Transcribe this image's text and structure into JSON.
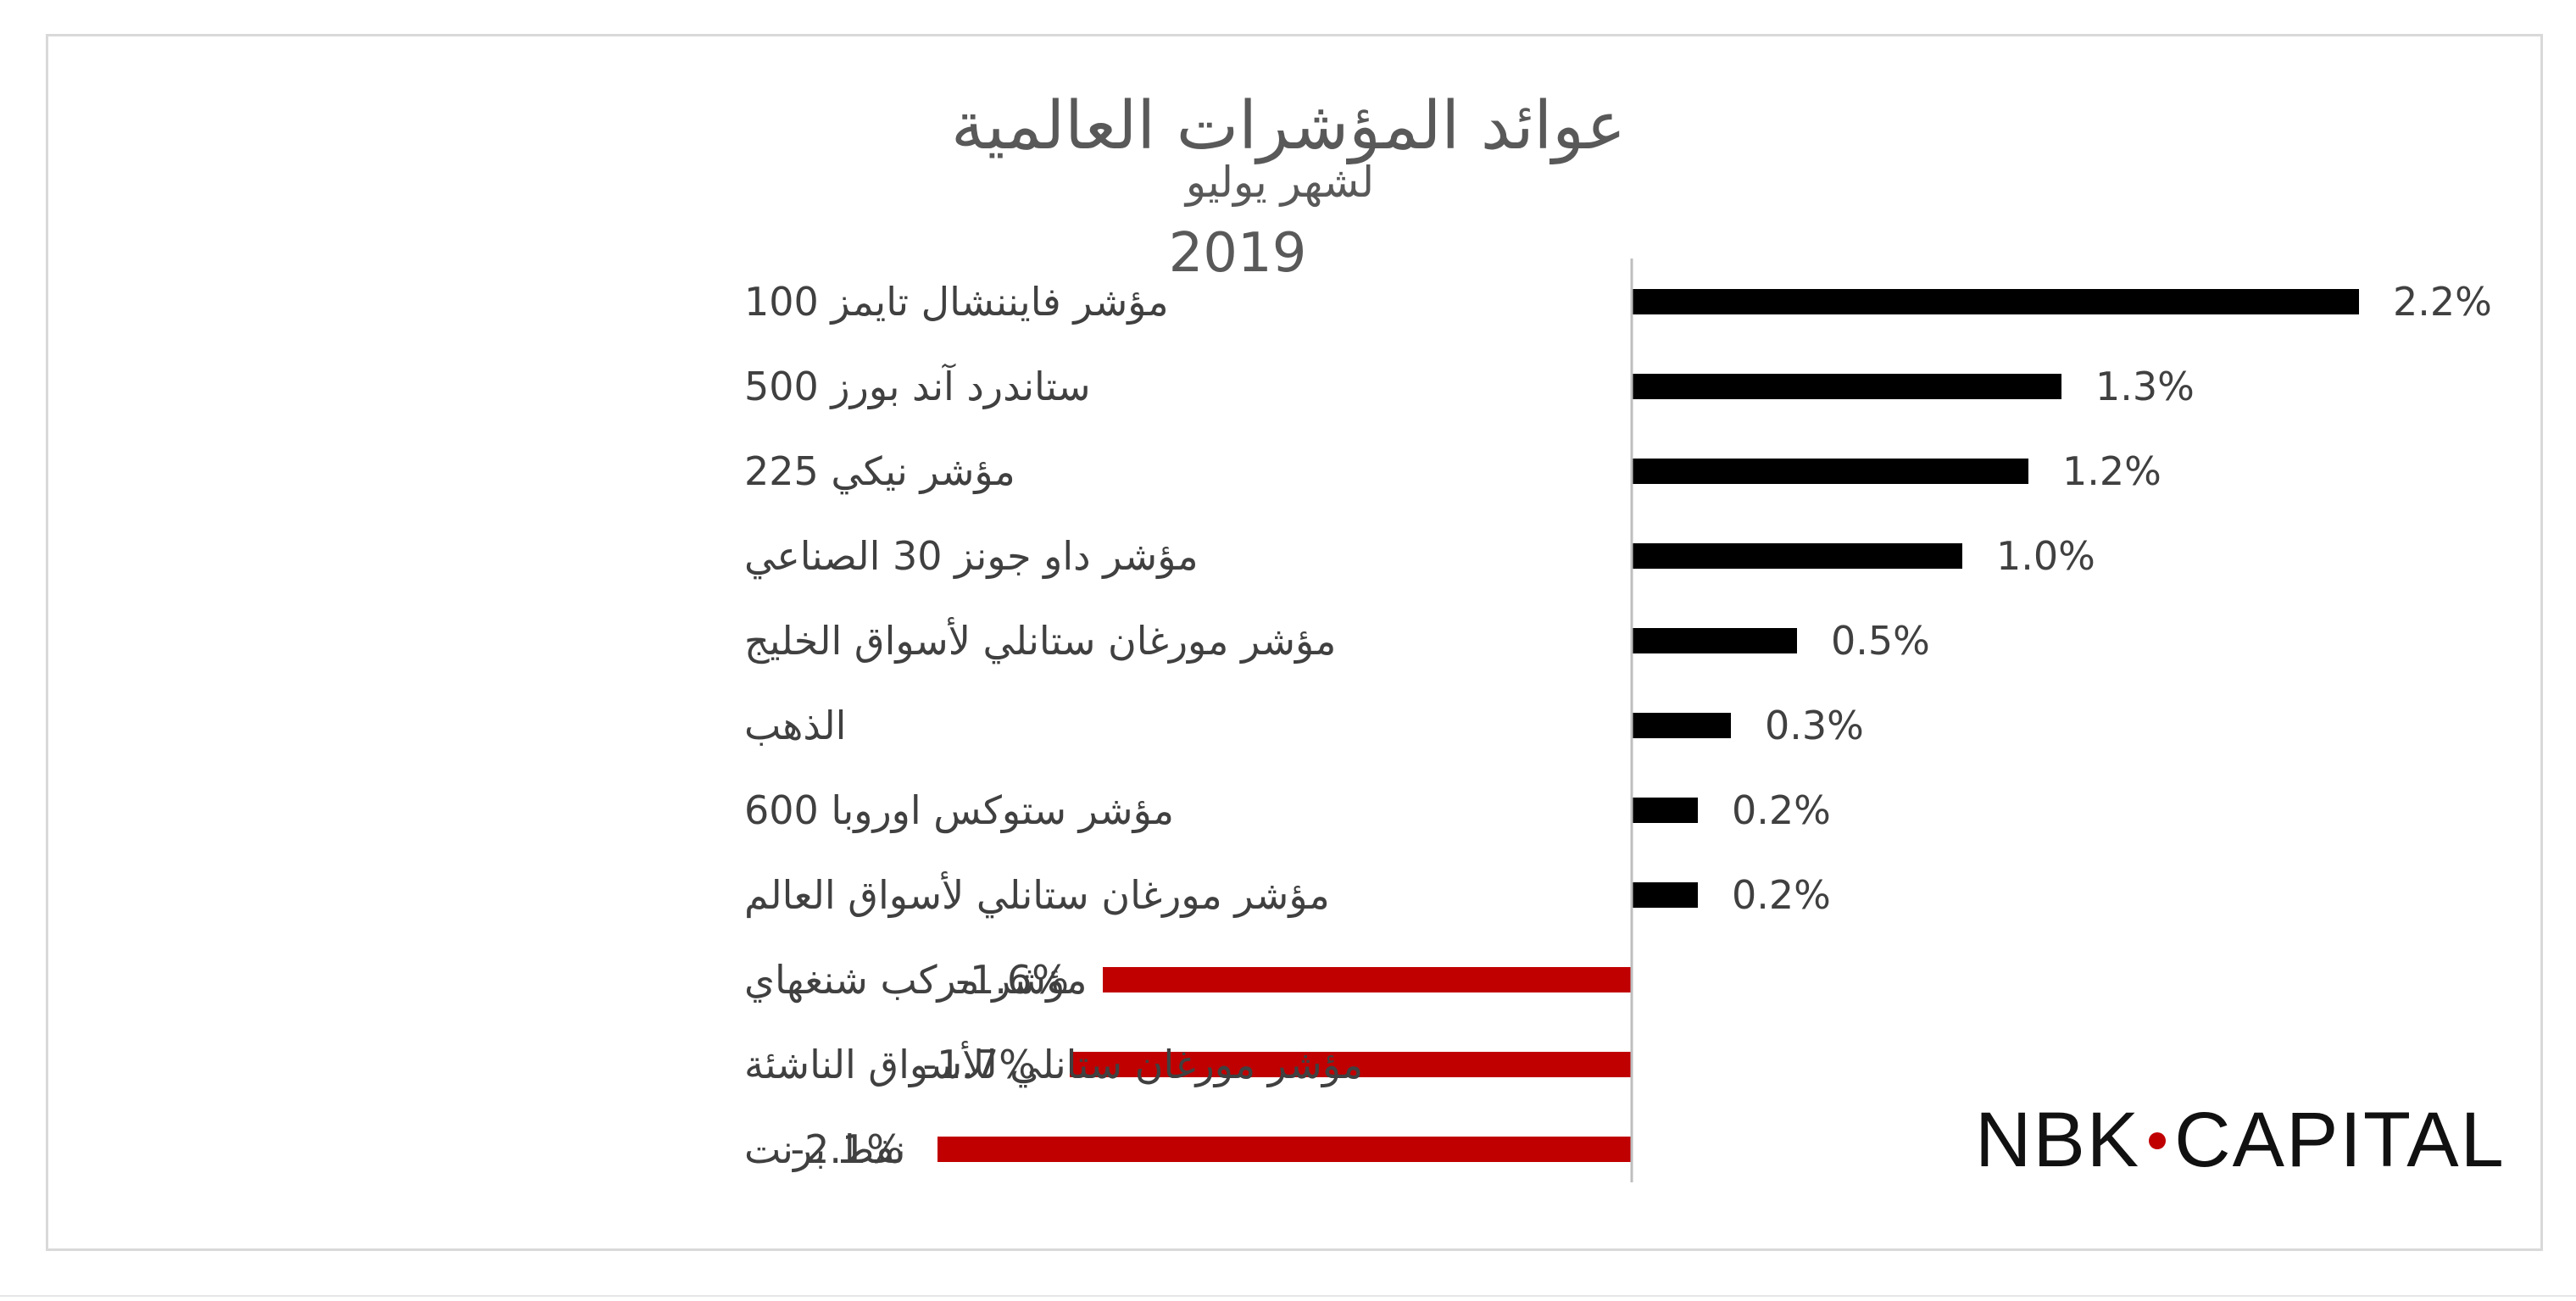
{
  "chart_data": {
    "type": "bar",
    "orientation": "horizontal",
    "title": "عوائد المؤشرات العالمية",
    "subtitle_lines": [
      "لشهر يوليو",
      "2019"
    ],
    "categories": [
      "مؤشر فايننشال تايمز 100",
      "ستاندرد آند بورز 500",
      "مؤشر نيكي 225",
      "مؤشر داو جونز 30 الصناعي",
      "مؤشر مورغان ستانلي لأسواق الخليج",
      "الذهب",
      "مؤشر ستوكس اوروبا 600",
      "مؤشر مورغان ستانلي لأسواق العالم",
      "مؤشر مركب شنغهاي",
      "مؤشر مورغان ستانلي للأسواق الناشئة",
      "نفط برنت"
    ],
    "values": [
      2.2,
      1.3,
      1.2,
      1.0,
      0.5,
      0.3,
      0.2,
      0.2,
      -1.6,
      -1.7,
      -2.1
    ],
    "value_labels": [
      "2.2%",
      "1.3%",
      "1.2%",
      "1.0%",
      "0.5%",
      "0.3%",
      "0.2%",
      "0.2%",
      "-1.6%",
      "-1.7%",
      "-2.1%"
    ],
    "xlim": [
      -2.1,
      2.2
    ],
    "grid": false,
    "legend": "none",
    "colors": {
      "positive": "#000000",
      "negative": "#c00000",
      "axis": "#bfbfbf"
    }
  },
  "logo": {
    "left": "NBK",
    "right": "CAPITAL",
    "dot_color": "#c00000"
  }
}
